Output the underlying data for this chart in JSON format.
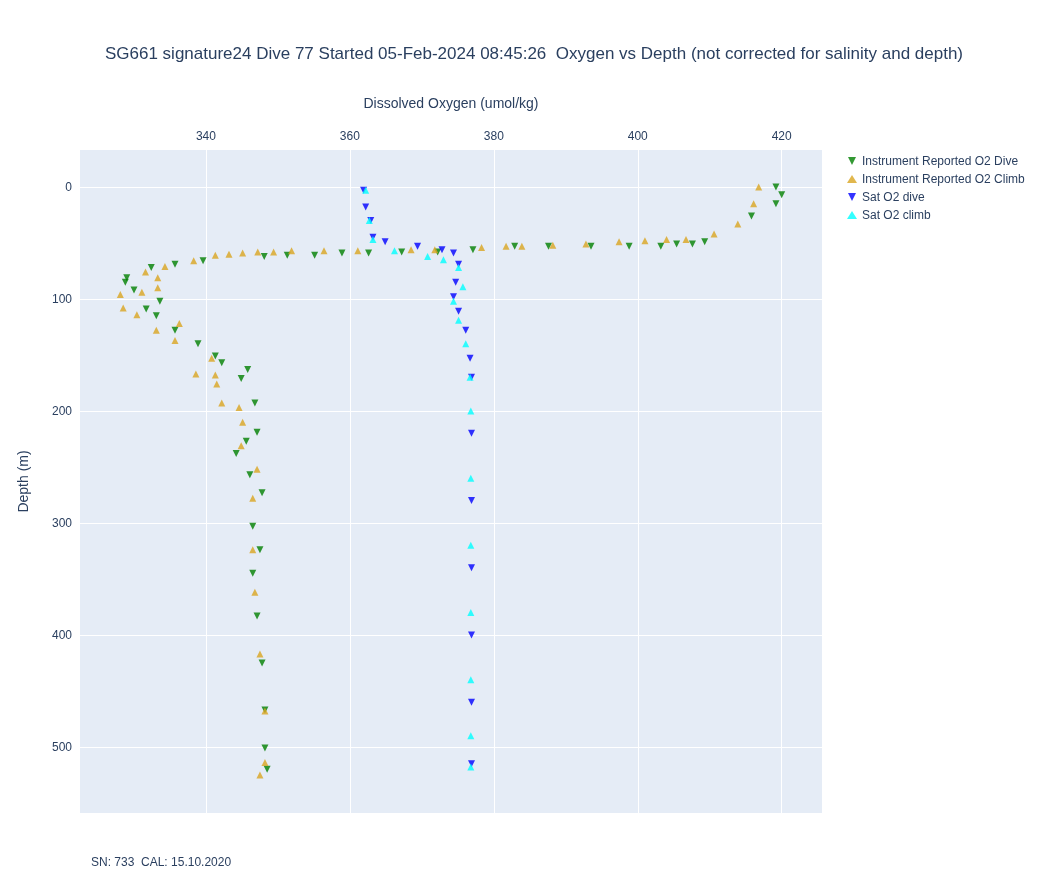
{
  "chart_data": {
    "type": "scatter",
    "title": "SG661 signature24 Dive 77 Started 05-Feb-2024 08:45:26  Oxygen vs Depth (not corrected for salinity and depth)",
    "xlabel": "Dissolved Oxygen (umol/kg)",
    "ylabel": "Depth (m)",
    "annotations": [
      "SN: 733  CAL: 15.10.2020"
    ],
    "xlim": [
      322.5,
      425.6
    ],
    "xticks": [
      340,
      360,
      380,
      400,
      420
    ],
    "ylim": [
      559,
      -33
    ],
    "yticks": [
      0,
      100,
      200,
      300,
      400,
      500
    ],
    "grid": true,
    "legend": "top right",
    "series": [
      {
        "name": "Instrument Reported O2 Dive",
        "color": "#008000",
        "marker": "triangle-down",
        "x": [
          419.2,
          420.0,
          419.2,
          415.8,
          409.3,
          407.6,
          405.4,
          403.2,
          398.8,
          393.5,
          387.6,
          382.9,
          377.1,
          372.2,
          367.2,
          362.6,
          358.9,
          355.1,
          351.3,
          348.1,
          339.6,
          335.7,
          332.4,
          329.0,
          328.8,
          330.0,
          333.6,
          331.7,
          333.1,
          335.7,
          338.9,
          341.3,
          342.2,
          345.8,
          344.9,
          346.8,
          347.1,
          345.6,
          344.2,
          346.1,
          347.8,
          346.5,
          347.5,
          346.5,
          347.1,
          347.8,
          348.2,
          348.2,
          348.5
        ],
        "values": [
          0,
          7,
          15,
          26,
          49,
          51,
          51,
          53,
          53,
          53,
          53,
          53,
          56,
          58,
          58,
          59,
          59,
          61,
          61,
          62,
          66,
          69,
          72,
          81,
          85,
          92,
          102,
          109,
          115,
          128,
          140,
          151,
          157,
          163,
          171,
          193,
          219,
          227,
          238,
          257,
          273,
          303,
          324,
          345,
          383,
          425,
          467,
          501,
          520
        ]
      },
      {
        "name": "Instrument Reported O2 Climb",
        "color": "#daa520",
        "marker": "triangle",
        "x": [
          416.8,
          416.1,
          413.9,
          410.6,
          406.7,
          404.0,
          401.0,
          397.4,
          392.8,
          388.2,
          383.9,
          381.7,
          378.3,
          371.8,
          368.5,
          361.1,
          356.4,
          351.9,
          349.4,
          347.2,
          345.1,
          343.2,
          341.3,
          338.3,
          334.3,
          331.6,
          333.3,
          333.3,
          331.1,
          328.1,
          328.5,
          330.4,
          336.3,
          333.1,
          335.7,
          340.8,
          338.6,
          341.5,
          341.3,
          342.2,
          344.6,
          345.1,
          344.9,
          347.1,
          346.5,
          346.5,
          346.8,
          347.5,
          348.2,
          348.2,
          347.5
        ],
        "values": [
          0,
          15,
          33,
          42,
          47,
          47,
          48,
          49,
          51,
          52,
          53,
          53,
          54,
          56,
          56,
          57,
          57,
          57,
          58,
          58,
          59,
          60,
          61,
          66,
          71,
          76,
          81,
          90,
          94,
          96,
          108,
          114,
          122,
          128,
          137,
          153,
          167,
          176,
          168,
          193,
          197,
          210,
          231,
          252,
          278,
          324,
          362,
          417,
          468,
          514,
          525
        ]
      },
      {
        "name": "Sat O2 dive",
        "color": "#0000ff",
        "marker": "triangle-down",
        "x": [
          361.9,
          362.2,
          362.9,
          363.2,
          364.9,
          369.4,
          372.8,
          374.4,
          375.1,
          374.7,
          374.4,
          375.1,
          376.1,
          376.7,
          376.9,
          376.9,
          376.9,
          376.9,
          376.9,
          376.9,
          376.9
        ],
        "values": [
          3,
          18,
          30,
          45,
          49,
          53,
          56,
          59,
          69,
          85,
          98,
          111,
          128,
          153,
          170,
          220,
          280,
          340,
          400,
          460,
          515
        ]
      },
      {
        "name": "Sat O2 climb",
        "color": "#00ffff",
        "marker": "triangle",
        "x": [
          362.2,
          362.7,
          363.2,
          366.2,
          370.8,
          373.0,
          375.1,
          375.7,
          374.4,
          375.1,
          376.1,
          376.7,
          376.8,
          376.8,
          376.8,
          376.8,
          376.8,
          376.8,
          376.8
        ],
        "values": [
          3,
          30,
          47,
          57,
          62,
          65,
          72,
          89,
          102,
          119,
          140,
          170,
          200,
          260,
          320,
          380,
          440,
          490,
          518
        ]
      }
    ]
  }
}
